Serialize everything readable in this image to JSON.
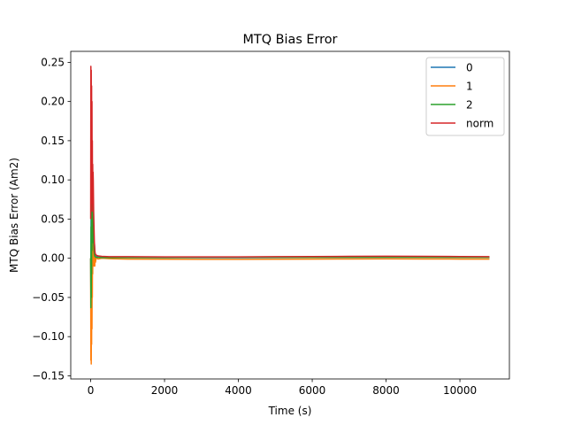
{
  "chart_data": {
    "type": "line",
    "title": "MTQ Bias Error",
    "xlabel": "Time (s)",
    "ylabel": "MTQ Bias Error (Am2)",
    "xlim": [
      -540,
      11340
    ],
    "ylim": [
      -0.154,
      0.264
    ],
    "xticks": [
      0,
      2000,
      4000,
      6000,
      8000,
      10000
    ],
    "yticks": [
      -0.15,
      -0.1,
      -0.05,
      0.0,
      0.05,
      0.1,
      0.15,
      0.2,
      0.25
    ],
    "xtick_labels": [
      "0",
      "2000",
      "4000",
      "6000",
      "8000",
      "10000"
    ],
    "ytick_labels": [
      "−0.15",
      "−0.10",
      "−0.05",
      "0.00",
      "0.05",
      "0.10",
      "0.15",
      "0.20",
      "0.25"
    ],
    "grid": false,
    "legend_position": "top-right",
    "series": [
      {
        "name": "0",
        "color": "#1f77b4",
        "x": [
          0,
          5,
          10,
          15,
          20,
          25,
          30,
          35,
          40,
          45,
          50,
          55,
          60,
          65,
          70,
          80,
          90,
          100,
          110,
          120,
          150,
          200,
          300,
          500,
          1000,
          2000,
          3000,
          4000,
          5000,
          6000,
          7000,
          8000,
          9000,
          10000,
          10800
        ],
        "y": [
          0.0,
          -0.04,
          0.05,
          -0.02,
          0.06,
          0.02,
          0.08,
          0.04,
          0.1,
          0.07,
          0.09,
          0.05,
          0.07,
          0.03,
          0.05,
          0.03,
          0.02,
          0.02,
          0.01,
          0.005,
          0.003,
          0.002,
          0.0015,
          0.001,
          0.001,
          0.0008,
          0.0007,
          0.0008,
          0.0009,
          0.001,
          0.0012,
          0.0014,
          0.0015,
          0.0013,
          0.001
        ]
      },
      {
        "name": "1",
        "color": "#ff7f0e",
        "x": [
          0,
          5,
          10,
          15,
          20,
          25,
          30,
          35,
          40,
          45,
          50,
          55,
          60,
          70,
          80,
          90,
          100,
          110,
          120,
          130,
          150,
          200,
          300,
          500,
          1000,
          2000,
          3000,
          4000,
          5000,
          6000,
          7000,
          8000,
          9000,
          10000,
          10800
        ],
        "y": [
          0.0,
          -0.13,
          -0.08,
          -0.135,
          -0.06,
          -0.11,
          -0.03,
          -0.09,
          -0.01,
          -0.05,
          0.02,
          -0.02,
          0.03,
          0.01,
          0.02,
          -0.01,
          0.0,
          -0.01,
          0.003,
          -0.005,
          0.001,
          -0.001,
          0.0,
          -0.0005,
          -0.001,
          -0.0012,
          -0.0014,
          -0.0013,
          -0.0012,
          -0.001,
          -0.0009,
          -0.0008,
          -0.0009,
          -0.001,
          -0.001
        ]
      },
      {
        "name": "2",
        "color": "#2ca02c",
        "x": [
          0,
          5,
          10,
          15,
          20,
          25,
          30,
          35,
          40,
          45,
          50,
          55,
          60,
          70,
          80,
          90,
          100,
          110,
          120,
          150,
          200,
          300,
          500,
          1000,
          2000,
          3000,
          4000,
          5000,
          6000,
          7000,
          8000,
          9000,
          10000,
          10800
        ],
        "y": [
          0.0,
          -0.063,
          0.04,
          -0.05,
          0.07,
          -0.02,
          0.09,
          0.01,
          0.1,
          0.03,
          0.08,
          0.02,
          0.06,
          0.03,
          0.02,
          0.01,
          0.005,
          0.003,
          0.002,
          0.001,
          0.001,
          0.0008,
          0.0007,
          0.0008,
          0.0009,
          0.0012,
          0.0013,
          0.0012,
          0.0011,
          0.0012,
          0.0013,
          0.0012,
          0.0011,
          0.001
        ]
      },
      {
        "name": "norm",
        "color": "#d62728",
        "x": [
          0,
          5,
          10,
          15,
          20,
          25,
          30,
          35,
          40,
          45,
          50,
          55,
          60,
          65,
          70,
          80,
          90,
          100,
          110,
          120,
          150,
          200,
          300,
          500,
          1000,
          2000,
          3000,
          4000,
          5000,
          6000,
          7000,
          8000,
          9000,
          10000,
          10800
        ],
        "y": [
          0.05,
          0.245,
          0.1,
          0.24,
          0.08,
          0.22,
          0.07,
          0.2,
          0.06,
          0.15,
          0.07,
          0.12,
          0.09,
          0.11,
          0.1,
          0.06,
          0.04,
          0.02,
          0.012,
          0.006,
          0.004,
          0.003,
          0.0025,
          0.002,
          0.002,
          0.0018,
          0.0017,
          0.0018,
          0.002,
          0.0022,
          0.0024,
          0.0026,
          0.0025,
          0.0022,
          0.002
        ]
      }
    ]
  }
}
